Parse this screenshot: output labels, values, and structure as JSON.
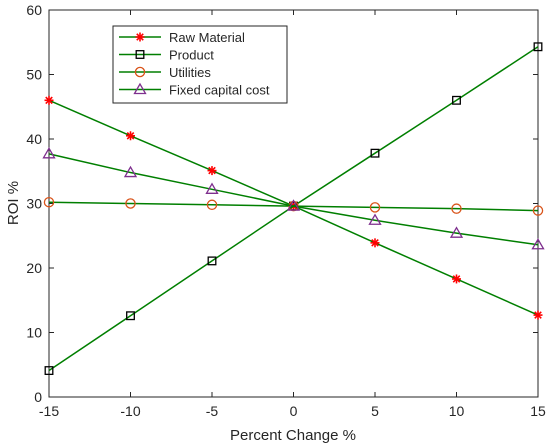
{
  "chart_data": {
    "type": "line",
    "xlabel": "Percent Change %",
    "ylabel": "ROI %",
    "xlim": [
      -15,
      15
    ],
    "ylim": [
      0,
      60
    ],
    "xticks": [
      -15,
      -10,
      -5,
      0,
      5,
      10,
      15
    ],
    "yticks": [
      0,
      10,
      20,
      30,
      40,
      50,
      60
    ],
    "grid": false,
    "legend_position": "top-left",
    "line_color": "#007f00",
    "x": [
      -15,
      -10,
      -5,
      0,
      5,
      10,
      15
    ],
    "series": [
      {
        "name": "Raw Material",
        "marker": "asterisk",
        "marker_color": "#ff0000",
        "values": [
          46.0,
          40.5,
          35.1,
          29.6,
          23.9,
          18.3,
          12.7
        ]
      },
      {
        "name": "Product",
        "marker": "square",
        "marker_color": "#000000",
        "values": [
          4.1,
          12.6,
          21.1,
          29.6,
          37.8,
          46.0,
          54.3
        ]
      },
      {
        "name": "Utilities",
        "marker": "circle",
        "marker_color": "#d95319",
        "values": [
          30.2,
          30.0,
          29.8,
          29.6,
          29.4,
          29.2,
          28.9
        ]
      },
      {
        "name": "Fixed capital cost",
        "marker": "triangle",
        "marker_color": "#7e2f8e",
        "values": [
          37.7,
          34.8,
          32.2,
          29.6,
          27.4,
          25.4,
          23.6
        ]
      }
    ]
  }
}
